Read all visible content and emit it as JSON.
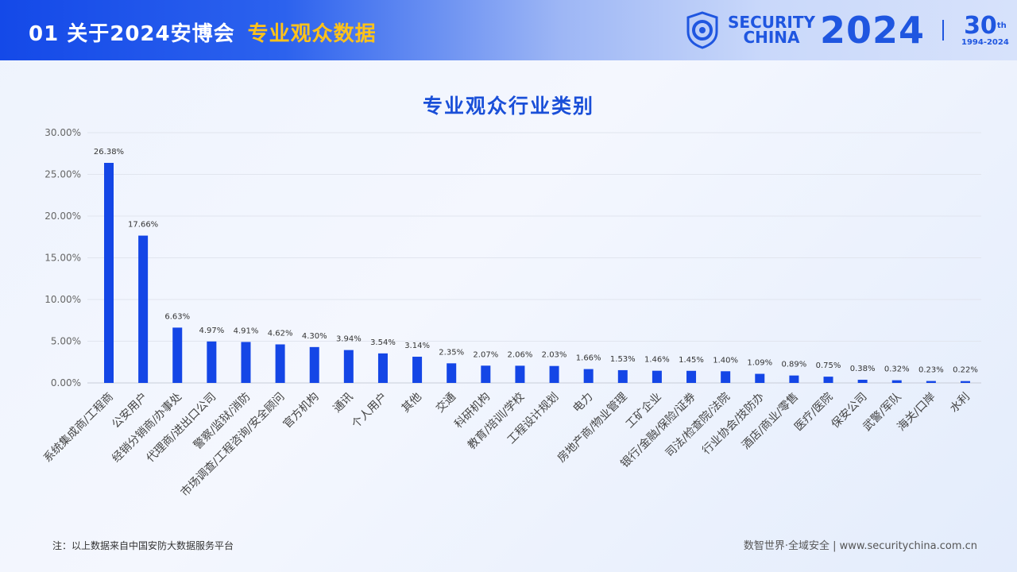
{
  "header": {
    "section": "01 关于2024安博会",
    "highlight": "专业观众数据"
  },
  "logo": {
    "line1": "SECURITY",
    "line2": "CHINA",
    "year": "2024",
    "anniversary": "30",
    "anniversary_suffix": "th",
    "anniversary_years": "1994-2024"
  },
  "chart_data": {
    "type": "bar",
    "title": "专业观众行业类别",
    "xlabel": "",
    "ylabel": "",
    "ylim": [
      0,
      30
    ],
    "yticks": [
      "0.00%",
      "5.00%",
      "10.00%",
      "15.00%",
      "20.00%",
      "25.00%",
      "30.00%"
    ],
    "grid": true,
    "bar_color": "#1446e6",
    "categories": [
      "系统集成商/工程商",
      "公安用户",
      "经销分销商/办事处",
      "代理商/进出口公司",
      "警察/监狱/消防",
      "市场调查/工程咨询/安全顾问",
      "官方机构",
      "通讯",
      "个人用户",
      "其他",
      "交通",
      "科研机构",
      "教育/培训/学校",
      "工程设计规划",
      "电力",
      "房地产商/物业管理",
      "工矿企业",
      "银行/金融/保险/证券",
      "司法/检查院/法院",
      "行业协会/技防办",
      "酒店/商业/零售",
      "医疗/医院",
      "保安公司",
      "武警/军队",
      "海关/口岸",
      "水利"
    ],
    "values": [
      26.38,
      17.66,
      6.63,
      4.97,
      4.91,
      4.62,
      4.3,
      3.94,
      3.54,
      3.14,
      2.35,
      2.07,
      2.06,
      2.03,
      1.66,
      1.53,
      1.46,
      1.45,
      1.4,
      1.09,
      0.89,
      0.75,
      0.38,
      0.32,
      0.23,
      0.22
    ],
    "data_labels": [
      "26.38%",
      "17.66%",
      "6.63%",
      "4.97%",
      "4.91%",
      "4.62%",
      "4.30%",
      "3.94%",
      "3.54%",
      "3.14%",
      "2.35%",
      "2.07%",
      "2.06%",
      "2.03%",
      "1.66%",
      "1.53%",
      "1.46%",
      "1.45%",
      "1.40%",
      "1.09%",
      "0.89%",
      "0.75%",
      "0.38%",
      "0.32%",
      "0.23%",
      "0.22%"
    ]
  },
  "note": "注：以上数据来自中国安防大数据服务平台",
  "footer": "数智世界·全域安全 | www.securitychina.com.cn"
}
